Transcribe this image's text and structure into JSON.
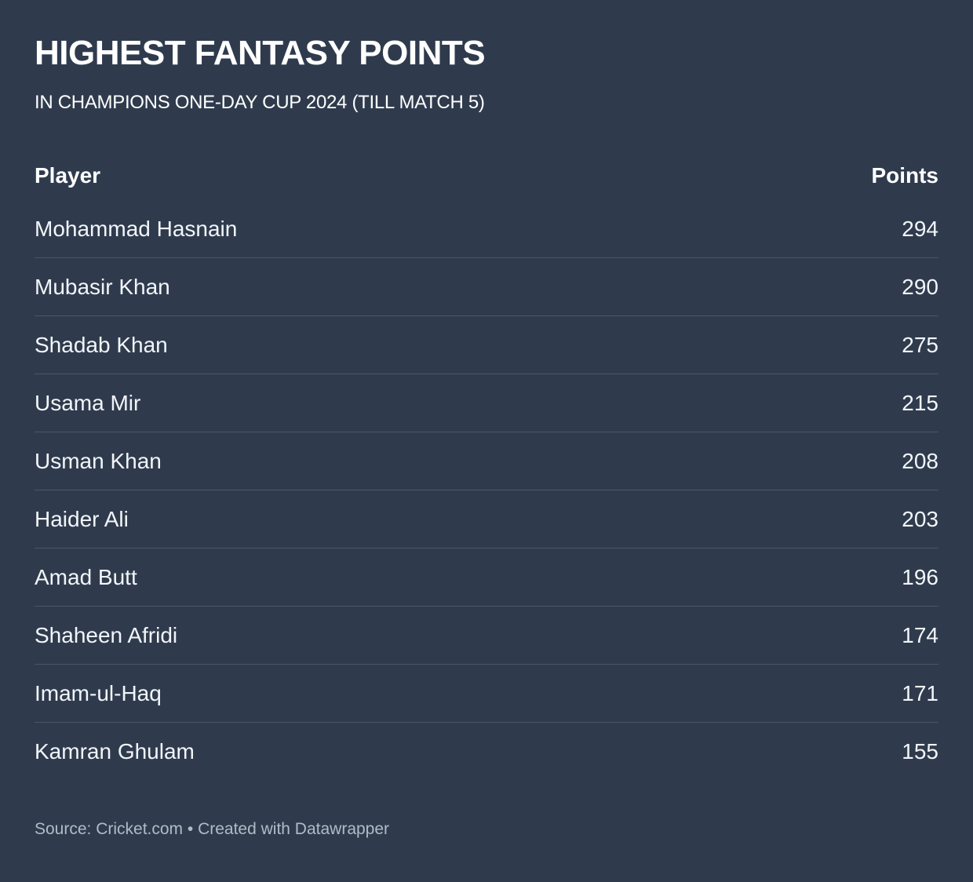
{
  "header": {
    "title": "HIGHEST FANTASY POINTS",
    "subtitle": "IN CHAMPIONS ONE-DAY CUP 2024 (TILL MATCH 5)"
  },
  "table": {
    "columns": [
      "Player",
      "Points"
    ]
  },
  "chart_data": {
    "type": "table",
    "title": "HIGHEST FANTASY POINTS",
    "subtitle": "IN CHAMPIONS ONE-DAY CUP 2024 (TILL MATCH 5)",
    "columns": [
      "Player",
      "Points"
    ],
    "rows": [
      [
        "Mohammad Hasnain",
        294
      ],
      [
        "Mubasir Khan",
        290
      ],
      [
        "Shadab Khan",
        275
      ],
      [
        "Usama Mir",
        215
      ],
      [
        "Usman Khan",
        208
      ],
      [
        "Haider Ali",
        203
      ],
      [
        "Amad Butt",
        196
      ],
      [
        "Shaheen Afridi",
        174
      ],
      [
        "Imam-ul-Haq",
        171
      ],
      [
        "Kamran Ghulam",
        155
      ]
    ]
  },
  "footer": {
    "source": "Source: Cricket.com • Created with Datawrapper"
  },
  "colors": {
    "background": "#2f3b4d",
    "separator": "#49566a",
    "text": "#f2f5f9",
    "heading": "#ffffff",
    "muted": "#b2bac5"
  }
}
